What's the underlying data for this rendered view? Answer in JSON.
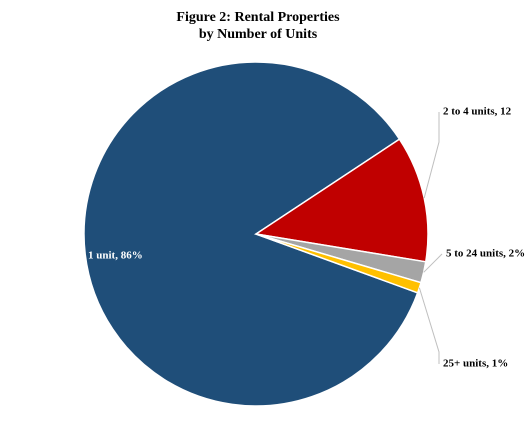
{
  "chart_data": {
    "type": "pie",
    "title": [
      "Figure 2: Rental Properties",
      "by Number of Units"
    ],
    "values": [
      86,
      12,
      2,
      1
    ],
    "value_labels": [
      "1 unit, 86%",
      "2 to 4 units, 12",
      "5 to 24 units, 2%",
      "25+ units, 1%"
    ],
    "colors": [
      "#1f4e79",
      "#c00000",
      "#a5a5a5",
      "#ffc000"
    ]
  }
}
